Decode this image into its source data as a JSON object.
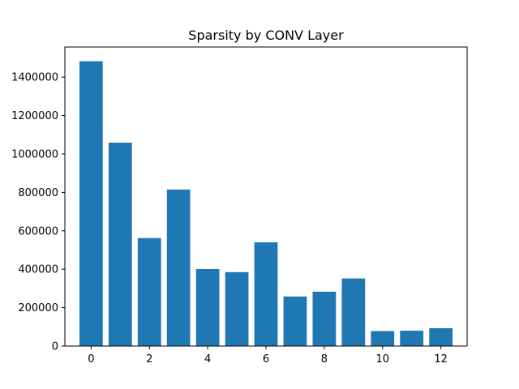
{
  "chart_data": {
    "type": "bar",
    "title": "Sparsity by CONV Layer",
    "xlabel": "",
    "ylabel": "",
    "categories": [
      0,
      1,
      2,
      3,
      4,
      5,
      6,
      7,
      8,
      9,
      10,
      11,
      12
    ],
    "values": [
      1483000,
      1059000,
      562000,
      815000,
      401000,
      385000,
      540000,
      258000,
      283000,
      352000,
      78000,
      80000,
      93000
    ],
    "xlim": [
      -0.9,
      12.9
    ],
    "ylim": [
      0,
      1557000
    ],
    "x_ticks": [
      0,
      2,
      4,
      6,
      8,
      10,
      12
    ],
    "y_ticks": [
      0,
      200000,
      400000,
      600000,
      800000,
      1000000,
      1200000,
      1400000
    ],
    "bar_color": "#1f77b4",
    "grid": false,
    "legend": "none"
  }
}
